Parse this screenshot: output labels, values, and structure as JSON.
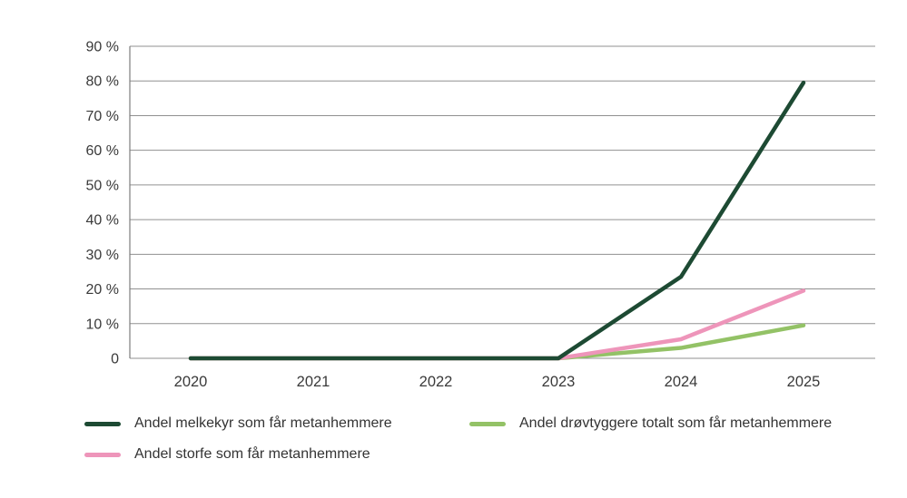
{
  "chart_data": {
    "type": "line",
    "categories": [
      "2020",
      "2021",
      "2022",
      "2023",
      "2024",
      "2025"
    ],
    "series": [
      {
        "name": "Andel melkekyr som får metanhemmere",
        "color": "#1d4a33",
        "values": [
          0,
          0,
          0,
          0,
          23.5,
          79.5
        ]
      },
      {
        "name": "Andel drøvtyggere totalt som får metanhemmere",
        "color": "#93c266",
        "values": [
          0,
          0,
          0,
          0,
          3,
          9.5
        ]
      },
      {
        "name": "Andel storfe som får metanhemmere",
        "color": "#ee95ba",
        "values": [
          0,
          0,
          0,
          0,
          5.5,
          19.5
        ]
      }
    ],
    "z_order": [
      1,
      2,
      0
    ],
    "title": "",
    "xlabel": "",
    "ylabel": "",
    "ylim": [
      0,
      90
    ],
    "yticks": [
      0,
      10,
      20,
      30,
      40,
      50,
      60,
      70,
      80,
      90
    ],
    "ytick_labels": [
      "0",
      "10 %",
      "20 %",
      "30 %",
      "40 %",
      "50 %",
      "60 %",
      "70 %",
      "80 %",
      "90 %"
    ],
    "grid": true,
    "grid_color": "#909090",
    "axis_color": "#7d7d7d",
    "legend_position": "bottom"
  }
}
